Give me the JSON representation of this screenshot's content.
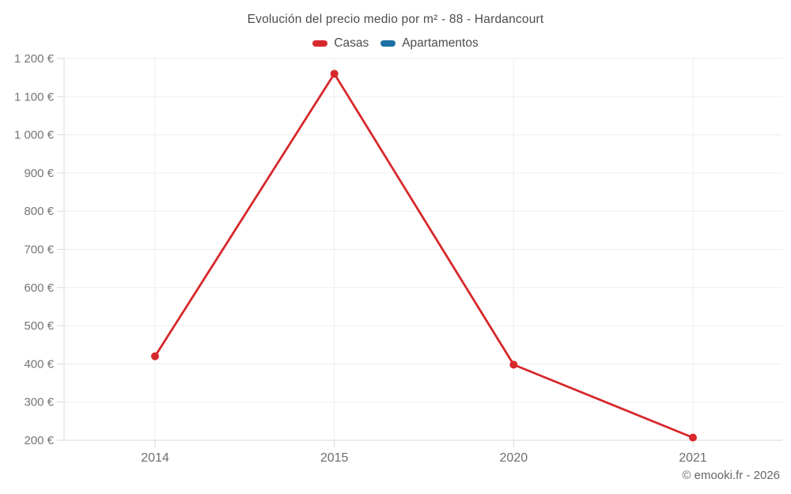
{
  "title": "Evolución del precio medio por m² - 88 - Hardancourt",
  "legend": {
    "items": [
      {
        "label": "Casas",
        "color": "#d7282c"
      },
      {
        "label": "Apartamentos",
        "color": "#1c70a4"
      }
    ]
  },
  "footer": "© emooki.fr - 2026",
  "colors": {
    "background": "#ffffff",
    "grid": "#ededed",
    "axis": "#d9d9d9",
    "tick_label": "#757575",
    "title_text": "#4d4d4d",
    "casas_red": "#d7282c",
    "apartamentos_blue": "#1c70a4"
  },
  "chart_data": {
    "type": "line",
    "title": "Evolución del precio medio por m² - 88 - Hardancourt",
    "categories": [
      "2014",
      "2015",
      "2020",
      "2021"
    ],
    "series": [
      {
        "name": "Casas",
        "color": "#d7282c",
        "values": [
          420,
          1160,
          398,
          207
        ]
      },
      {
        "name": "Apartamentos",
        "color": "#1c70a4",
        "values": []
      }
    ],
    "xlabel": "",
    "ylabel": "",
    "ylim": [
      200,
      1200
    ],
    "ytick_step": 100,
    "ytick_labels": [
      "200 €",
      "300 €",
      "400 €",
      "500 €",
      "600 €",
      "700 €",
      "800 €",
      "900 €",
      "1 000 €",
      "1 100 €",
      "1 200 €"
    ],
    "currency_suffix": "€",
    "grid": true,
    "legend_position": "top",
    "marker": "circle"
  }
}
